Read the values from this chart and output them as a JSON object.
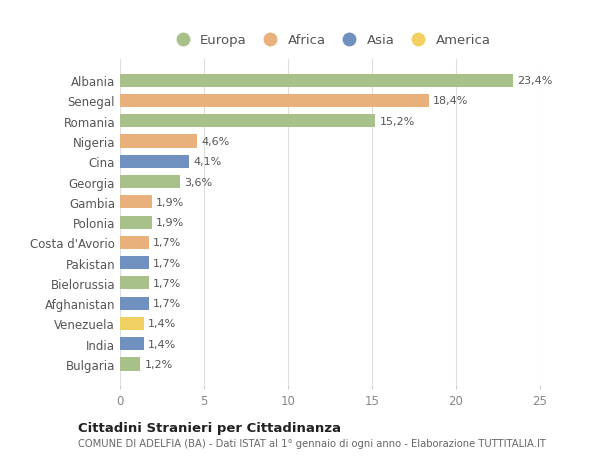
{
  "countries": [
    "Albania",
    "Senegal",
    "Romania",
    "Nigeria",
    "Cina",
    "Georgia",
    "Gambia",
    "Polonia",
    "Costa d'Avorio",
    "Pakistan",
    "Bielorussia",
    "Afghanistan",
    "Venezuela",
    "India",
    "Bulgaria"
  ],
  "values": [
    23.4,
    18.4,
    15.2,
    4.6,
    4.1,
    3.6,
    1.9,
    1.9,
    1.7,
    1.7,
    1.7,
    1.7,
    1.4,
    1.4,
    1.2
  ],
  "labels": [
    "23,4%",
    "18,4%",
    "15,2%",
    "4,6%",
    "4,1%",
    "3,6%",
    "1,9%",
    "1,9%",
    "1,7%",
    "1,7%",
    "1,7%",
    "1,7%",
    "1,4%",
    "1,4%",
    "1,2%"
  ],
  "continents": [
    "Europa",
    "Africa",
    "Europa",
    "Africa",
    "Asia",
    "Europa",
    "Africa",
    "Europa",
    "Africa",
    "Asia",
    "Europa",
    "Asia",
    "America",
    "Asia",
    "Europa"
  ],
  "colors": {
    "Europa": "#a8c08a",
    "Africa": "#e8b07a",
    "Asia": "#7090c0",
    "America": "#f0d060"
  },
  "legend_order": [
    "Europa",
    "Africa",
    "Asia",
    "America"
  ],
  "title": "Cittadini Stranieri per Cittadinanza",
  "subtitle": "COMUNE DI ADELFIA (BA) - Dati ISTAT al 1° gennaio di ogni anno - Elaborazione TUTTITALIA.IT",
  "xlim": [
    0,
    25
  ],
  "xticks": [
    0,
    5,
    10,
    15,
    20,
    25
  ],
  "background_color": "#ffffff",
  "grid_color": "#dddddd"
}
